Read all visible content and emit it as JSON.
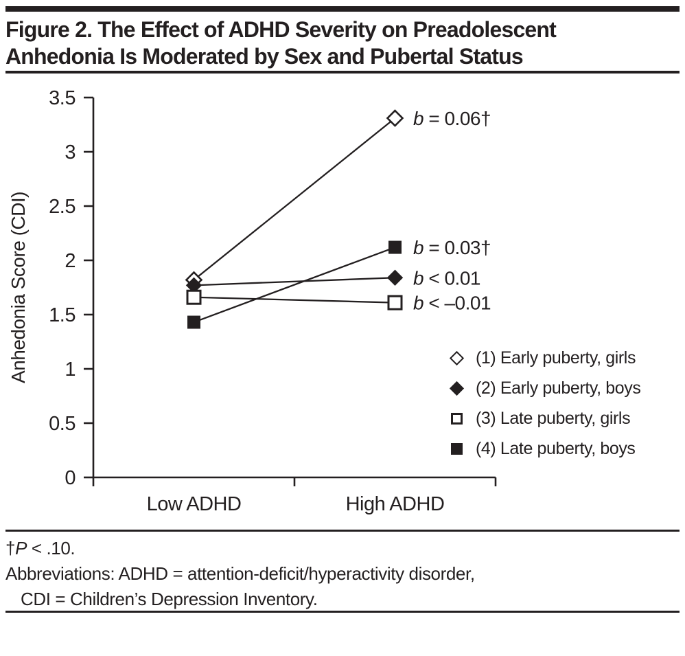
{
  "colors": {
    "ink": "#231f20",
    "background": "#ffffff"
  },
  "figure": {
    "title_line1": "Figure 2. The Effect of ADHD Severity on Preadolescent",
    "title_line2": "Anhedonia Is Moderated by Sex and Pubertal Status"
  },
  "chart_data": {
    "type": "line",
    "categories": [
      "Low ADHD",
      "High ADHD"
    ],
    "ylabel": "Anhedonia Score (CDI)",
    "ylim": [
      0,
      3.5
    ],
    "yticks": [
      0,
      0.5,
      1,
      1.5,
      2,
      2.5,
      3,
      3.5
    ],
    "ytick_labels": [
      "0",
      "0.5",
      "1",
      "1.5",
      "2",
      "2.5",
      "3",
      "3.5"
    ],
    "grid": false,
    "legend_position": "lower right",
    "series": [
      {
        "legend_label": "(1) Early puberty, girls",
        "marker": "diamond-open",
        "values": [
          1.82,
          3.31
        ],
        "b_label_var": "b",
        "b_label_rest": " = 0.06†"
      },
      {
        "legend_label": "(2) Early puberty, boys",
        "marker": "diamond-filled",
        "values": [
          1.77,
          1.84
        ],
        "b_label_var": "b",
        "b_label_rest": " < 0.01"
      },
      {
        "legend_label": "(3) Late puberty, girls",
        "marker": "square-open",
        "values": [
          1.66,
          1.61
        ],
        "b_label_var": "b",
        "b_label_rest": " < –0.01"
      },
      {
        "legend_label": "(4) Late puberty, boys",
        "marker": "square-filled",
        "values": [
          1.43,
          2.12
        ],
        "b_label_var": "b",
        "b_label_rest": " = 0.03†"
      }
    ]
  },
  "footnotes": {
    "dagger": "†",
    "p_symbol": "P",
    "p_rest": " < .10.",
    "abbreviations_line1": "Abbreviations: ADHD = attention-deficit/hyperactivity disorder,",
    "abbreviations_line2": "CDI = Children’s Depression Inventory."
  }
}
